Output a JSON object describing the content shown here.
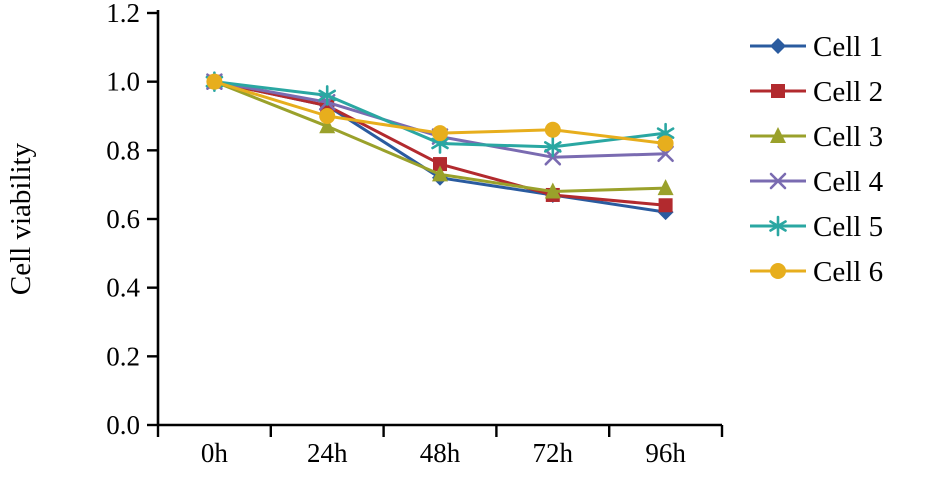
{
  "figure": {
    "background": "#ffffff",
    "axis_color": "#000000"
  },
  "chart_data": {
    "type": "line",
    "title": "",
    "xlabel": "",
    "ylabel": "Cell viability",
    "ylim": [
      0.0,
      1.2
    ],
    "ytick_step": 0.2,
    "grid": false,
    "legend_position": "right",
    "categories": [
      "0h",
      "24h",
      "48h",
      "72h",
      "96h"
    ],
    "series": [
      {
        "name": "Cell 1",
        "color": "#2a5b9f",
        "marker": "diamond",
        "values": [
          1.0,
          0.93,
          0.72,
          0.67,
          0.62
        ]
      },
      {
        "name": "Cell 2",
        "color": "#b22a2e",
        "marker": "square",
        "values": [
          1.0,
          0.93,
          0.76,
          0.67,
          0.64
        ]
      },
      {
        "name": "Cell 3",
        "color": "#9aa12b",
        "marker": "triangle",
        "values": [
          1.0,
          0.87,
          0.73,
          0.68,
          0.69
        ]
      },
      {
        "name": "Cell 4",
        "color": "#7a6bb1",
        "marker": "x",
        "values": [
          1.0,
          0.94,
          0.84,
          0.78,
          0.79
        ]
      },
      {
        "name": "Cell 5",
        "color": "#2aa7a2",
        "marker": "asterisk",
        "values": [
          1.0,
          0.96,
          0.82,
          0.81,
          0.85
        ]
      },
      {
        "name": "Cell 6",
        "color": "#e7ae1d",
        "marker": "circle",
        "values": [
          1.0,
          0.9,
          0.85,
          0.86,
          0.82
        ]
      }
    ]
  }
}
